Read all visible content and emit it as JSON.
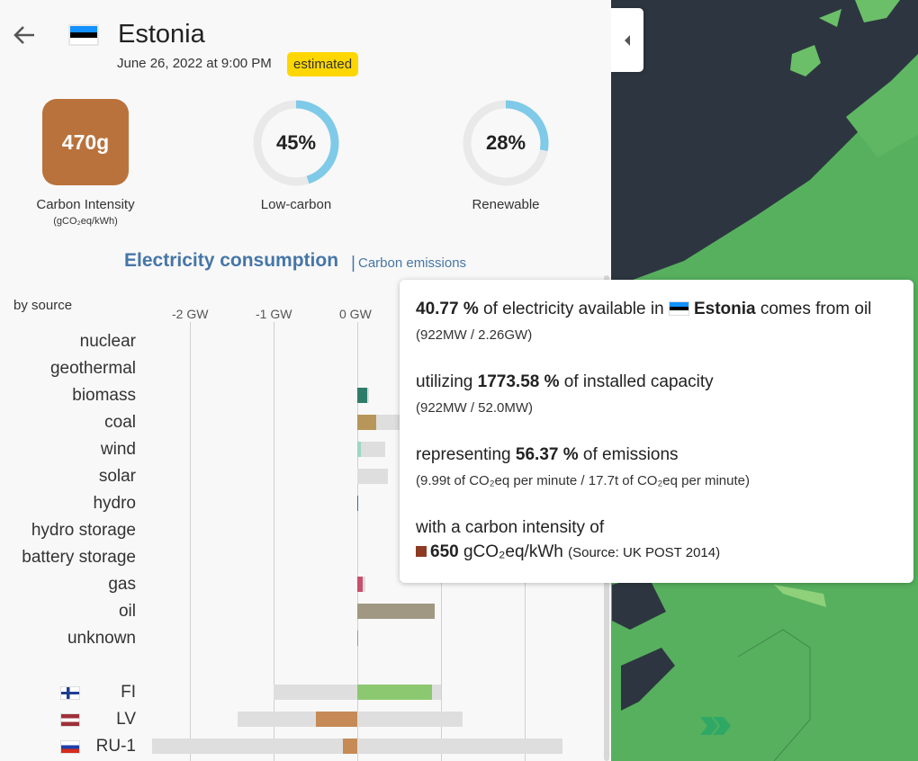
{
  "header": {
    "country": "Estonia",
    "datetime": "June 26, 2022 at 9:00 PM",
    "badge": "estimated"
  },
  "metrics": {
    "carbon_intensity": {
      "value": "470g",
      "label": "Carbon Intensity",
      "unit": "(gCO₂eq/kWh)",
      "color": "#b9723b"
    },
    "low_carbon": {
      "value": "45%",
      "label": "Low-carbon",
      "fraction": 0.45
    },
    "renewable": {
      "value": "28%",
      "label": "Renewable",
      "fraction": 0.28
    }
  },
  "tabs": {
    "active": "Electricity consumption",
    "separator": "|",
    "inactive": "Carbon emissions"
  },
  "chart_data": {
    "type": "bar",
    "title": "by source",
    "xticks": [
      "-2 GW",
      "-1 GW",
      "0 GW"
    ],
    "unit": "GW",
    "sources": [
      {
        "label": "nuclear",
        "value": 0,
        "capacity": 0,
        "color": "#aec7e8"
      },
      {
        "label": "geothermal",
        "value": 0,
        "capacity": 0,
        "color": "#a0522d"
      },
      {
        "label": "biomass",
        "value": 0.12,
        "capacity": 0.14,
        "color": "#2e7d6b"
      },
      {
        "label": "coal",
        "value": 0.23,
        "capacity": 0.5,
        "color": "#b8965a"
      },
      {
        "label": "wind",
        "value": 0.04,
        "capacity": 0.33,
        "color": "#9ad8c2"
      },
      {
        "label": "solar",
        "value": 0,
        "capacity": 0.37,
        "color": "#f2c12e"
      },
      {
        "label": "hydro",
        "value": 0.01,
        "capacity": 0.01,
        "color": "#2a6ebb"
      },
      {
        "label": "hydro storage",
        "value": 0,
        "capacity": 0,
        "color": "#0b3b7a"
      },
      {
        "label": "battery storage",
        "value": 0,
        "capacity": 0,
        "color": "#b0a0d0"
      },
      {
        "label": "gas",
        "value": 0.06,
        "capacity": 0.1,
        "color": "#c8506a"
      },
      {
        "label": "oil",
        "value": 0.92,
        "capacity": 0.052,
        "color": "#a19884"
      },
      {
        "label": "unknown",
        "value": 0.005,
        "capacity": 0,
        "color": "#999999"
      }
    ],
    "exchanges": [
      {
        "label": "FI",
        "value": 0.89,
        "cap_min": -1.0,
        "cap_max": 1.0,
        "color": "#8cc870",
        "flag": [
          "#ffffff",
          "#1e3d8f",
          "#ffffff"
        ]
      },
      {
        "label": "LV",
        "value": -0.5,
        "cap_min": -1.43,
        "cap_max": 1.26,
        "color": "#c68a56",
        "flag": [
          "#9e3039",
          "#ffffff",
          "#9e3039"
        ]
      },
      {
        "label": "RU-1",
        "value": -0.17,
        "cap_min": -2.45,
        "cap_max": 2.45,
        "color": "#c68a56",
        "flag": [
          "#ffffff",
          "#1c3fa8",
          "#d52b1e"
        ]
      }
    ]
  },
  "tooltip": {
    "line1_pct": "40.77 %",
    "line1_pre": "of electricity available in",
    "line1_country": "Estonia",
    "line1_post": "comes from oil",
    "line1_sub": "(922MW / 2.26GW)",
    "line2_pre": "utilizing",
    "line2_pct": "1773.58 %",
    "line2_post": "of installed capacity",
    "line2_sub": "(922MW / 52.0MW)",
    "line3_pre": "representing",
    "line3_pct": "56.37 %",
    "line3_post": "of emissions",
    "line3_sub": "(9.99t of CO₂eq per minute / 17.7t of CO₂eq per minute)",
    "line4": "with a carbon intensity of",
    "line4_value": "650",
    "line4_unit": "gCO₂eq/kWh",
    "line4_source": "(Source: UK POST 2014)",
    "swatch_color": "#8c3a23"
  },
  "flags": {
    "estonia": [
      "#1291ff",
      "#000000",
      "#ffffff"
    ]
  }
}
